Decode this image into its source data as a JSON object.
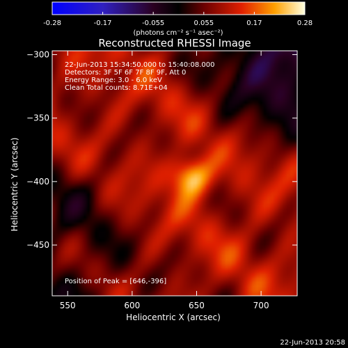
{
  "chart_data": {
    "type": "heatmap",
    "title": "Reconstructed RHESSI Image",
    "xlabel": "Heliocentric X (arcsec)",
    "ylabel": "Heliocentric Y (arcsec)",
    "xlim": [
      538,
      728
    ],
    "ylim": [
      -490,
      -297
    ],
    "xticks": [
      550,
      600,
      650,
      700
    ],
    "yticks": [
      -300,
      -350,
      -400,
      -450
    ],
    "colorbar": {
      "ticks": [
        "-0.28",
        "-0.17",
        "-0.055",
        "0.055",
        "0.17",
        "0.28"
      ],
      "range": [
        -0.28,
        0.28
      ],
      "unit_label": "(photons cm⁻² s⁻¹ asec⁻²)"
    },
    "info_lines": [
      "22-Jun-2013 15:34:50.000 to 15:40:08.000",
      "Detectors: 3F 5F 6F 7F 8F 9F, Att 0",
      "Energy Range: 3.0 - 6.0 keV",
      "Clean     Total counts: 8.71E+04"
    ],
    "peak_label": "Position of Peak = [646,-396]",
    "peak": {
      "x": 646,
      "y": -396,
      "value": 0.28
    },
    "secondary_source": {
      "x": 690,
      "y": -410,
      "value": 0.12
    },
    "background_level": 0.1,
    "negative_region": "top-right corner",
    "grid": false
  },
  "footer": {
    "timestamp": "22-Jun-2013 20:58"
  }
}
